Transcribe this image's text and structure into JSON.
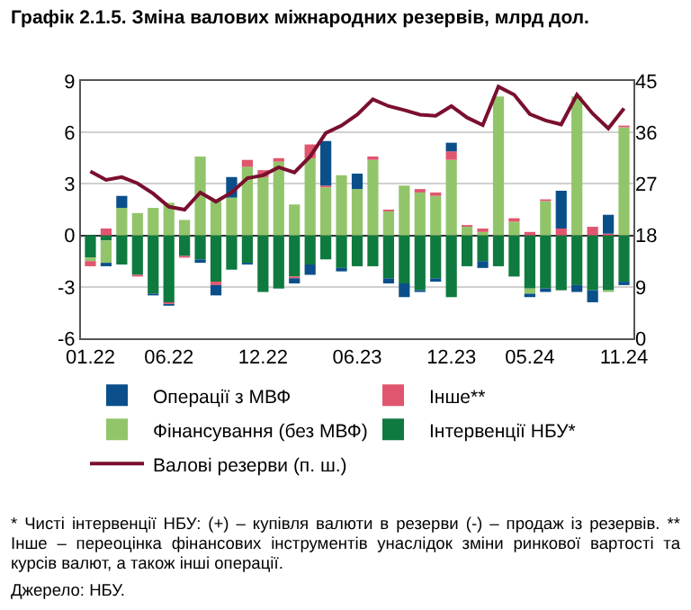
{
  "chart_data": {
    "type": "bar",
    "title": "Графік 2.1.5. Зміна валових міжнародних резервів, млрд дол.",
    "stacked": true,
    "grid": "y",
    "legend": "bottom",
    "categories": [
      "01.22",
      null,
      null,
      null,
      null,
      "06.22",
      null,
      null,
      null,
      null,
      null,
      "12.22",
      null,
      null,
      null,
      null,
      null,
      "06.23",
      null,
      null,
      null,
      null,
      null,
      "12.23",
      null,
      null,
      null,
      null,
      "05.24",
      null,
      null,
      null,
      null,
      null,
      "11.24"
    ],
    "ylim": [
      -6,
      9
    ],
    "yticks": [
      -6,
      -3,
      0,
      3,
      6,
      9
    ],
    "y2lim": [
      0,
      45
    ],
    "y2ticks": [
      0,
      9,
      18,
      27,
      36,
      45
    ],
    "series": [
      {
        "name": "Інтервенції НБУ*",
        "color": "#0e7a3f",
        "values": [
          -1.3,
          -0.3,
          -1.7,
          -2.3,
          -3.4,
          -3.9,
          -1.2,
          -1.4,
          -2.7,
          -2.0,
          -1.6,
          -3.3,
          -3.1,
          -2.4,
          -1.7,
          -1.4,
          -1.9,
          -1.8,
          -1.8,
          -2.5,
          -2.8,
          -3.2,
          -2.5,
          -3.6,
          -1.8,
          -1.5,
          -1.8,
          -2.4,
          -3.1,
          -3.1,
          -3.2,
          -2.9,
          -3.2,
          -3.2,
          -2.7
        ]
      },
      {
        "name": "Фінансування (без МВФ)",
        "color": "#92c56a",
        "values": [
          -0.2,
          -1.3,
          1.6,
          1.3,
          1.6,
          1.9,
          0.9,
          4.6,
          2.0,
          2.2,
          4.0,
          3.4,
          4.3,
          1.8,
          4.5,
          2.8,
          3.5,
          2.7,
          4.4,
          1.4,
          2.9,
          2.5,
          2.3,
          4.4,
          0.5,
          0.2,
          8.1,
          0.8,
          -0.3,
          2.0,
          null,
          8.1,
          null,
          -0.1,
          6.3
        ]
      },
      {
        "name": "Інше**",
        "color": "#e0566e",
        "values": [
          -0.3,
          0.4,
          null,
          -0.1,
          null,
          -0.1,
          -0.1,
          null,
          -0.2,
          null,
          0.4,
          0.4,
          0.2,
          -0.1,
          0.8,
          0.1,
          null,
          null,
          0.2,
          0.1,
          null,
          0.2,
          0.2,
          0.5,
          0.1,
          0.2,
          null,
          0.2,
          0.2,
          0.1,
          0.4,
          null,
          0.5,
          0.1,
          0.1
        ]
      },
      {
        "name": "Операції з МВФ",
        "color": "#0b4f8a",
        "values": [
          null,
          -0.2,
          0.7,
          null,
          -0.1,
          -0.1,
          null,
          -0.2,
          -0.6,
          1.2,
          -0.1,
          null,
          null,
          -0.3,
          -0.6,
          2.6,
          -0.2,
          0.9,
          null,
          -0.3,
          -0.8,
          -0.1,
          -0.2,
          0.5,
          null,
          -0.4,
          null,
          null,
          -0.2,
          -0.2,
          2.2,
          -0.4,
          -0.7,
          1.1,
          -0.2
        ]
      },
      {
        "name": "Валові резерви (п. ш.)",
        "type": "line",
        "axis": "y2",
        "color": "#7a0f2e",
        "values": [
          29.2,
          27.7,
          28.2,
          27.1,
          25.3,
          23.0,
          22.5,
          25.5,
          23.9,
          25.5,
          28.0,
          28.5,
          29.9,
          29.0,
          31.8,
          35.9,
          37.2,
          39.1,
          41.8,
          40.6,
          39.9,
          39.1,
          38.9,
          40.6,
          38.6,
          37.3,
          44.0,
          42.6,
          39.2,
          38.1,
          37.4,
          42.6,
          39.3,
          36.7,
          40.2
        ]
      }
    ],
    "annotations": [
      "* Чисті інтервенції НБУ: (+) – купівля валюти в резерви (-) – продаж із резервів. ** Інше – переоцінка фінансових інструментів унаслідок зміни ринкової вартості та курсів валют, а також інші операції.",
      "Джерело: НБУ."
    ]
  }
}
